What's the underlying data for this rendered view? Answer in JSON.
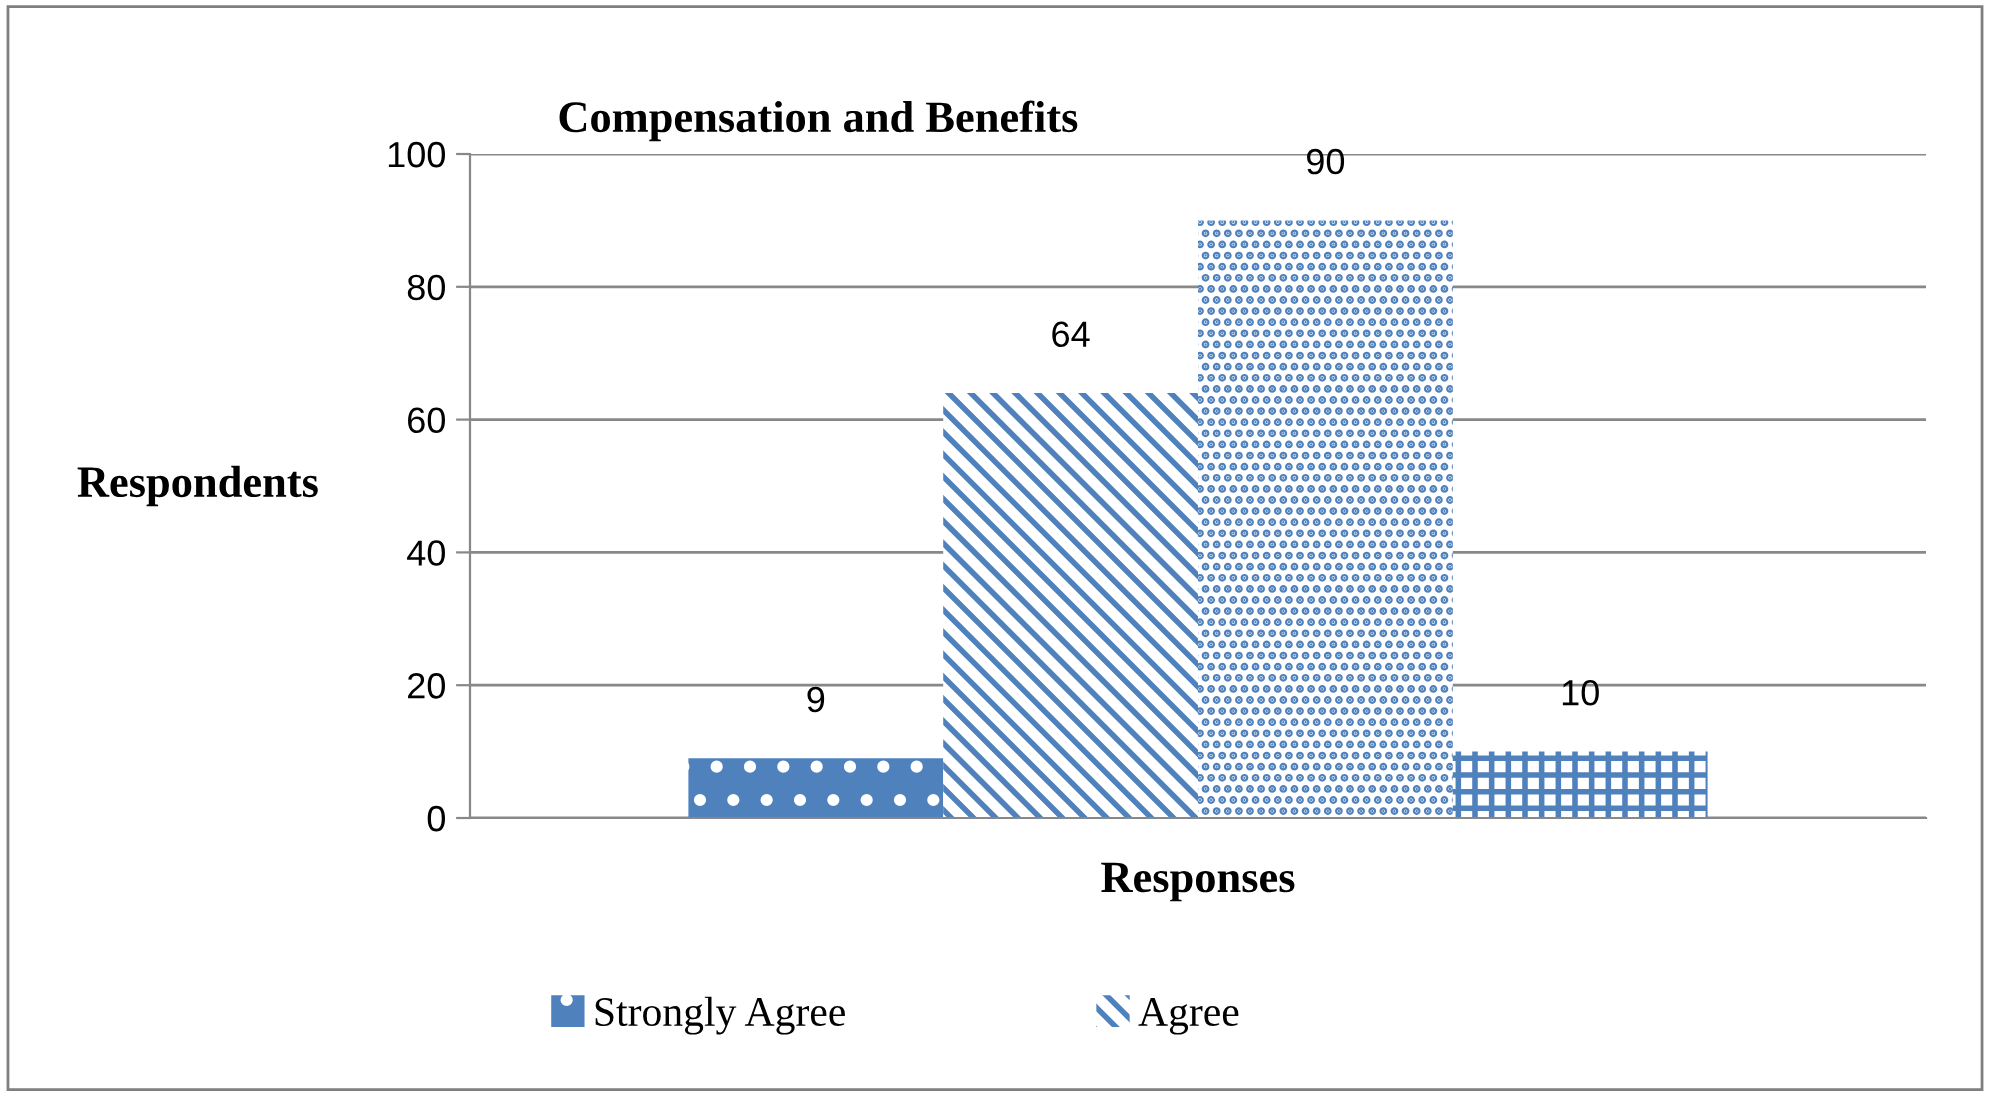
{
  "chart_data": {
    "type": "bar",
    "title": "Compensation and Benefits",
    "xlabel": "Responses",
    "ylabel": "Respondents",
    "categories": [
      null
    ],
    "series": [
      {
        "name": "Strongly Agree",
        "color": "#4f81bd",
        "values": [
          9
        ]
      },
      {
        "name": "Agree",
        "color": "#4f81bd",
        "values": [
          64
        ]
      },
      {
        "color": "#4f81bd",
        "values": [
          90
        ]
      },
      {
        "color": "#4f81bd",
        "values": [
          10
        ]
      }
    ],
    "ylim": [
      0,
      100
    ],
    "yticks": [
      0,
      20,
      40,
      60,
      80,
      100
    ],
    "grid": "y",
    "legend": "bottom",
    "data_labels": true
  }
}
